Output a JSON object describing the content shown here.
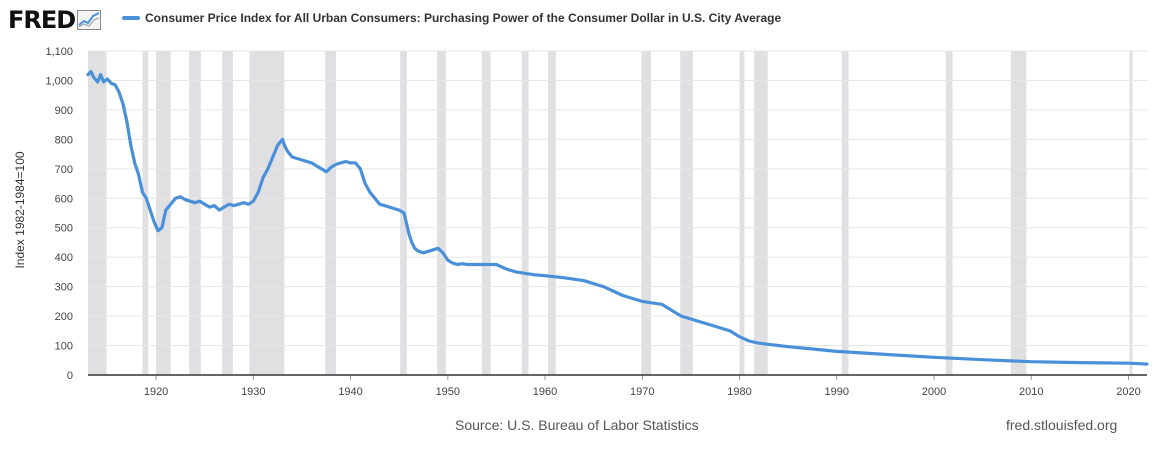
{
  "header": {
    "logo_text": "FRED",
    "logo_icon": "chart-line-icon",
    "legend_label": "Consumer Price Index for All Urban Consumers: Purchasing Power of the Consumer Dollar in U.S. City Average"
  },
  "footer": {
    "source": "Source: U.S. Bureau of Labor Statistics",
    "site": "fred.stlouisfed.org"
  },
  "colors": {
    "series": "#4a90d9",
    "recession": "#e0e0e3",
    "grid": "#e6e6e6",
    "axis": "#333333"
  },
  "chart_data": {
    "type": "line",
    "title": "",
    "xlabel": "",
    "ylabel": "Index 1982-1984=100",
    "xlim": [
      1913,
      2021.9
    ],
    "ylim": [
      0,
      1100
    ],
    "x_ticks": [
      "1920",
      "1930",
      "1940",
      "1950",
      "1960",
      "1970",
      "1980",
      "1990",
      "2000",
      "2010",
      "2020"
    ],
    "y_ticks": [
      "0",
      "100",
      "200",
      "300",
      "400",
      "500",
      "600",
      "700",
      "800",
      "900",
      "1,000",
      "1,100"
    ],
    "grid": true,
    "legend": "top",
    "recessions": [
      [
        1913.0,
        1914.9
      ],
      [
        1918.6,
        1919.2
      ],
      [
        1920.0,
        1921.5
      ],
      [
        1923.4,
        1924.6
      ],
      [
        1926.8,
        1927.9
      ],
      [
        1929.6,
        1933.2
      ],
      [
        1937.4,
        1938.5
      ],
      [
        1945.1,
        1945.8
      ],
      [
        1948.9,
        1949.8
      ],
      [
        1953.5,
        1954.4
      ],
      [
        1957.6,
        1958.3
      ],
      [
        1960.3,
        1961.1
      ],
      [
        1969.9,
        1970.9
      ],
      [
        1973.9,
        1975.2
      ],
      [
        1980.0,
        1980.5
      ],
      [
        1981.5,
        1982.9
      ],
      [
        1990.5,
        1991.2
      ],
      [
        2001.2,
        2001.9
      ],
      [
        2007.9,
        2009.5
      ],
      [
        2020.1,
        2020.4
      ]
    ],
    "series": [
      {
        "name": "Consumer Price Index for All Urban Consumers: Purchasing Power of the Consumer Dollar in U.S. City Average",
        "x": [
          1913.0,
          1913.3,
          1913.6,
          1914.0,
          1914.3,
          1914.6,
          1915.0,
          1915.4,
          1915.8,
          1916.2,
          1916.6,
          1917.0,
          1917.4,
          1917.8,
          1918.2,
          1918.6,
          1919.0,
          1919.4,
          1919.8,
          1920.2,
          1920.6,
          1921.0,
          1921.5,
          1922.0,
          1922.5,
          1923.0,
          1923.5,
          1924.0,
          1924.5,
          1925.0,
          1925.5,
          1926.0,
          1926.5,
          1927.0,
          1927.5,
          1928.0,
          1928.5,
          1929.0,
          1929.5,
          1930.0,
          1930.5,
          1931.0,
          1931.5,
          1932.0,
          1932.5,
          1933.0,
          1933.2,
          1933.5,
          1934.0,
          1934.5,
          1935.0,
          1935.5,
          1936.0,
          1936.5,
          1937.0,
          1937.5,
          1938.0,
          1938.5,
          1939.0,
          1939.5,
          1940.0,
          1940.5,
          1941.0,
          1941.5,
          1942.0,
          1942.5,
          1943.0,
          1943.5,
          1944.0,
          1944.5,
          1945.0,
          1945.5,
          1946.0,
          1946.3,
          1946.6,
          1947.0,
          1947.5,
          1948.0,
          1948.5,
          1949.0,
          1949.5,
          1950.0,
          1950.5,
          1951.0,
          1951.5,
          1952.0,
          1953.0,
          1954.0,
          1955.0,
          1956.0,
          1957.0,
          1958.0,
          1959.0,
          1960.0,
          1962.0,
          1964.0,
          1966.0,
          1968.0,
          1970.0,
          1972.0,
          1973.0,
          1974.0,
          1975.0,
          1976.0,
          1977.0,
          1978.0,
          1979.0,
          1980.0,
          1981.0,
          1982.0,
          1983.0,
          1985.0,
          1987.0,
          1990.0,
          1995.0,
          2000.0,
          2005.0,
          2010.0,
          2015.0,
          2020.0,
          2021.9
        ],
        "values": [
          1020,
          1030,
          1010,
          995,
          1020,
          995,
          1005,
          990,
          985,
          960,
          920,
          860,
          780,
          720,
          680,
          620,
          600,
          560,
          520,
          490,
          500,
          560,
          580,
          600,
          605,
          595,
          590,
          585,
          590,
          580,
          570,
          575,
          560,
          570,
          580,
          575,
          580,
          585,
          580,
          590,
          620,
          670,
          700,
          740,
          780,
          800,
          780,
          760,
          740,
          735,
          730,
          725,
          720,
          710,
          700,
          690,
          705,
          715,
          720,
          725,
          720,
          720,
          700,
          650,
          620,
          600,
          580,
          575,
          570,
          565,
          560,
          550,
          480,
          450,
          430,
          420,
          415,
          420,
          425,
          430,
          415,
          390,
          380,
          375,
          378,
          375,
          375,
          375,
          375,
          360,
          350,
          345,
          340,
          337,
          330,
          320,
          300,
          270,
          250,
          240,
          220,
          200,
          190,
          180,
          170,
          160,
          150,
          130,
          115,
          108,
          104,
          96,
          90,
          80,
          70,
          60,
          52,
          45,
          42,
          40,
          37
        ]
      }
    ]
  }
}
